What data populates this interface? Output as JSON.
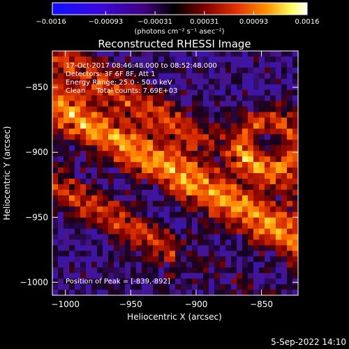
{
  "chart_data": {
    "type": "heatmap",
    "title": "Reconstructed RHESSI Image",
    "xlabel": "Heliocentric X (arcsec)",
    "ylabel": "Heliocentric Y (arcsec)",
    "xlim": [
      -1010,
      -822
    ],
    "ylim": [
      -1010,
      -822
    ],
    "x_ticks": [
      -1000,
      -950,
      -900,
      -850
    ],
    "x_tick_labels": [
      "−1000",
      "−950",
      "−900",
      "−850"
    ],
    "y_ticks": [
      -1000,
      -950,
      -900,
      -850
    ],
    "y_tick_labels": [
      "−1000",
      "−950",
      "−900",
      "−850"
    ],
    "colorbar": {
      "range": [
        -0.0016,
        0.0016
      ],
      "ticks": [
        -0.0016,
        -0.00093,
        -0.00031,
        0.00031,
        0.00093,
        0.0016
      ],
      "tick_labels": [
        "−0.0016",
        "−0.00093",
        "−0.00031",
        "0.00031",
        "0.00093",
        "0.0016"
      ],
      "unit_label": "(photons cm⁻² s⁻¹ asec⁻²)",
      "colors": [
        "#1010ff",
        "#5a00c8",
        "#000000",
        "#800000",
        "#e03000",
        "#ff9000",
        "#ffff60",
        "#ffffff"
      ]
    },
    "annotations": {
      "time_range": "17-Oct-2017 08:46:48.000 to 08:52:48.000",
      "detectors": "Detectors: 3F 6F 8F, Att 1",
      "energy": "Energy Range: 25.0 - 50.0 keV",
      "clean": "Clean     Total counts: 7.69E+03",
      "peak": "Position of Peak = [-839,-892]"
    },
    "peak": {
      "x": -839,
      "y": -892
    }
  },
  "footer": {
    "timestamp": "5-Sep-2022 14:10"
  }
}
